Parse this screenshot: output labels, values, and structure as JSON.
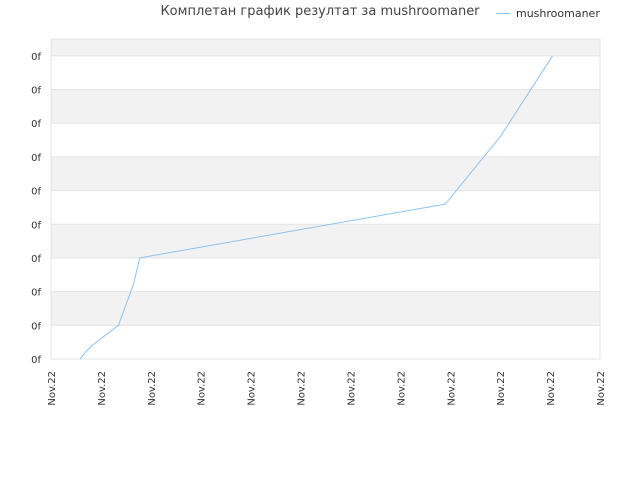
{
  "chart_data": {
    "type": "line",
    "title": "Комплетан график резултат за mushroomaner",
    "xlabel": "",
    "ylabel": "",
    "x_tick_labels": [
      "Nov.22",
      "Nov.22",
      "Nov.22",
      "Nov.22",
      "Nov.22",
      "Nov.22",
      "Nov.22",
      "Nov.22",
      "Nov.22",
      "Nov.22",
      "Nov.22",
      "Nov.22"
    ],
    "y_tick_labels": [
      "0f",
      "0f",
      "0f",
      "0f",
      "0f",
      "0f",
      "0f",
      "0f",
      "0f",
      "0f"
    ],
    "xlim": [
      0,
      11
    ],
    "ylim": [
      0,
      9.5
    ],
    "grid": true,
    "legend_position": "top-right",
    "series": [
      {
        "name": "mushroomaner",
        "color": "#8cc3ef",
        "x": [
          0.58,
          0.64,
          0.72,
          0.82,
          1.35,
          1.65,
          1.78,
          7.9,
          9.0,
          10.05
        ],
        "y": [
          0.0,
          0.1,
          0.25,
          0.4,
          1.0,
          2.2,
          3.0,
          4.6,
          6.6,
          9.0
        ]
      }
    ],
    "colors": {
      "band_shade": "#f2f2f2",
      "band_light": "#ffffff",
      "grid_line": "#e4e4e4",
      "axis_text": "#333333"
    }
  }
}
